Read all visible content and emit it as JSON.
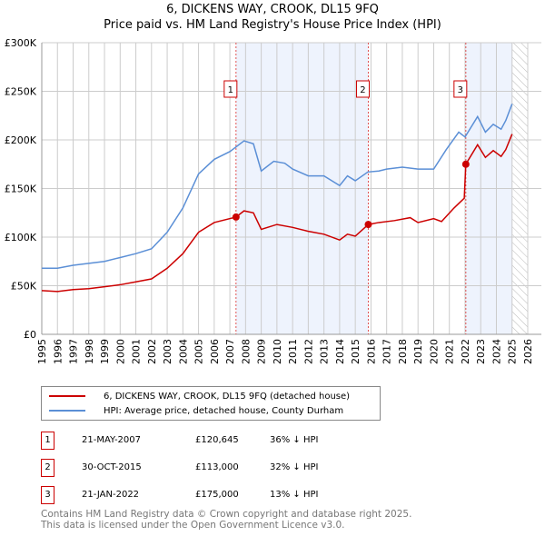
{
  "chart_data": {
    "type": "line",
    "title": "6, DICKENS WAY, CROOK, DL15 9FQ",
    "subtitle": "Price paid vs. HM Land Registry's House Price Index (HPI)",
    "xlim": [
      1995,
      2026
    ],
    "ylim": [
      0,
      300000
    ],
    "x_ticks": [
      "1995",
      "1996",
      "1997",
      "1998",
      "1999",
      "2000",
      "2001",
      "2002",
      "2003",
      "2004",
      "2005",
      "2006",
      "2007",
      "2008",
      "2009",
      "2010",
      "2011",
      "2012",
      "2013",
      "2014",
      "2015",
      "2016",
      "2017",
      "2018",
      "2019",
      "2020",
      "2021",
      "2022",
      "2023",
      "2024",
      "2025",
      "2026"
    ],
    "y_ticks": [
      {
        "v": 0,
        "label": "£0"
      },
      {
        "v": 50000,
        "label": "£50K"
      },
      {
        "v": 100000,
        "label": "£100K"
      },
      {
        "v": 150000,
        "label": "£150K"
      },
      {
        "v": 200000,
        "label": "£200K"
      },
      {
        "v": 250000,
        "label": "£250K"
      },
      {
        "v": 300000,
        "label": "£300K"
      }
    ],
    "grid": true,
    "series": [
      {
        "name": "6, DICKENS WAY, CROOK, DL15 9FQ (detached house)",
        "color": "#cc0000",
        "x": [
          1995,
          1996,
          1997,
          1998,
          1999,
          2000,
          2001,
          2002,
          2003,
          2004,
          2005,
          2006,
          2007.39,
          2007.9,
          2008.5,
          2009,
          2010,
          2011,
          2012,
          2013,
          2014,
          2014.5,
          2015,
          2015.83,
          2016.5,
          2017.5,
          2018.5,
          2019,
          2020,
          2020.5,
          2021.3,
          2021.95,
          2022.05,
          2022.8,
          2023.3,
          2023.8,
          2024.3,
          2024.6,
          2025
        ],
        "y": [
          45000,
          44000,
          46000,
          47000,
          49000,
          51000,
          54000,
          57000,
          68000,
          83000,
          105000,
          115000,
          120645,
          127000,
          125000,
          108000,
          113000,
          110000,
          106000,
          103000,
          97000,
          103000,
          101000,
          113000,
          115000,
          117000,
          120000,
          115000,
          119000,
          116000,
          130000,
          140000,
          175000,
          195000,
          182000,
          189000,
          183000,
          190000,
          206000
        ]
      },
      {
        "name": "HPI: Average price, detached house, County Durham",
        "color": "#5b8fd6",
        "x": [
          1995,
          1996,
          1997,
          1998,
          1999,
          2000,
          2001,
          2002,
          2003,
          2004,
          2005,
          2006,
          2007,
          2007.9,
          2008.5,
          2009,
          2009.8,
          2010.5,
          2011,
          2012,
          2013,
          2014,
          2014.5,
          2015,
          2015.8,
          2016.5,
          2017,
          2018,
          2019,
          2020,
          2020.8,
          2021.6,
          2022,
          2022.8,
          2023.3,
          2023.8,
          2024.3,
          2024.6,
          2025
        ],
        "y": [
          68000,
          68000,
          71000,
          73000,
          75000,
          79000,
          83000,
          88000,
          105000,
          130000,
          165000,
          180000,
          188000,
          199000,
          196000,
          168000,
          178000,
          176000,
          170000,
          163000,
          163000,
          153000,
          163000,
          158000,
          167000,
          168000,
          170000,
          172000,
          170000,
          170000,
          190000,
          208000,
          203000,
          224000,
          208000,
          216000,
          211000,
          220000,
          237000
        ]
      }
    ],
    "sales": [
      {
        "n": "1",
        "x": 2007.39,
        "y": 120645,
        "date": "21-MAY-2007",
        "price": "£120,645",
        "hpi": "36% ↓ HPI"
      },
      {
        "n": "2",
        "x": 2015.83,
        "y": 113000,
        "date": "30-OCT-2015",
        "price": "£113,000",
        "hpi": "32% ↓ HPI"
      },
      {
        "n": "3",
        "x": 2022.05,
        "y": 175000,
        "date": "21-JAN-2022",
        "price": "£175,000",
        "hpi": "13% ↓ HPI"
      }
    ],
    "shaded_ranges": [
      [
        2007.39,
        2015.83
      ],
      [
        2022.05,
        2025.0
      ]
    ],
    "hatched_range": [
      2025.0,
      2026
    ]
  },
  "footer": [
    "Contains HM Land Registry data © Crown copyright and database right 2025.",
    "This data is licensed under the Open Government Licence v3.0."
  ]
}
